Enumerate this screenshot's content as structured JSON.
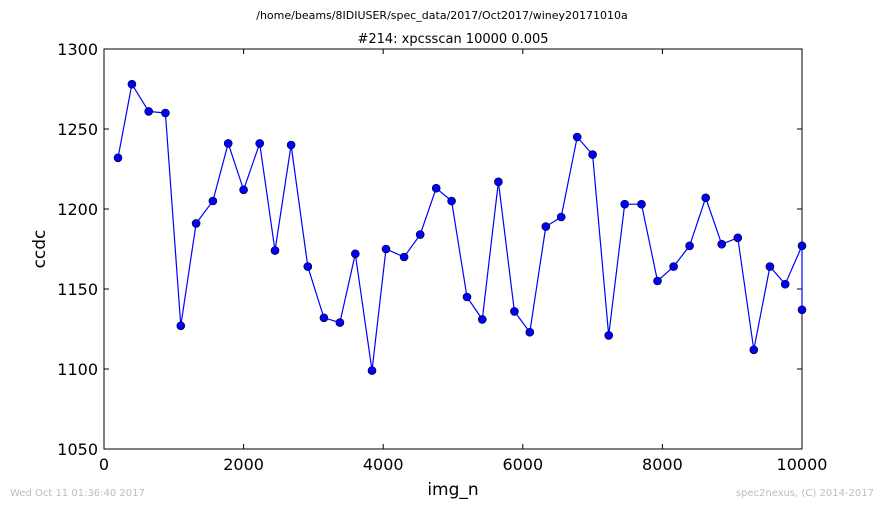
{
  "suptitle": "/home/beams/8IDIUSER/spec_data/2017/Oct2017/winey20171010a",
  "footer": {
    "timestamp": "Wed Oct 11 01:36:40 2017",
    "credit": "spec2nexus, (C) 2014-2017"
  },
  "chart_data": {
    "type": "line",
    "title": "#214: xpcsscan 10000 0.005",
    "xlabel": "img_n",
    "ylabel": "ccdc",
    "xlim": [
      0,
      10000
    ],
    "ylim": [
      1050,
      1300
    ],
    "xticks": [
      0,
      2000,
      4000,
      6000,
      8000,
      10000
    ],
    "yticks": [
      1050,
      1100,
      1150,
      1200,
      1250,
      1300
    ],
    "grid": false,
    "series": [
      {
        "color": "#0000ff",
        "marker": "circle",
        "x": [
          200,
          400,
          640,
          880,
          1100,
          1320,
          1560,
          1780,
          2000,
          2230,
          2450,
          2680,
          2920,
          3150,
          3380,
          3600,
          3840,
          4040,
          4300,
          4530,
          4760,
          4980,
          5200,
          5420,
          5650,
          5880,
          6100,
          6330,
          6550,
          6780,
          7000,
          7230,
          7460,
          7700,
          7930,
          8160,
          8390,
          8620,
          8850,
          9080,
          9310,
          9540,
          9760,
          10000,
          10000
        ],
        "y": [
          1232,
          1278,
          1261,
          1260,
          1127,
          1191,
          1205,
          1241,
          1212,
          1241,
          1174,
          1240,
          1164,
          1132,
          1129,
          1172,
          1099,
          1175,
          1170,
          1184,
          1213,
          1205,
          1145,
          1131,
          1217,
          1136,
          1123,
          1189,
          1195,
          1245,
          1234,
          1121,
          1203,
          1203,
          1155,
          1164,
          1177,
          1207,
          1178,
          1182,
          1112,
          1164,
          1153,
          1177,
          1137
        ]
      }
    ]
  }
}
